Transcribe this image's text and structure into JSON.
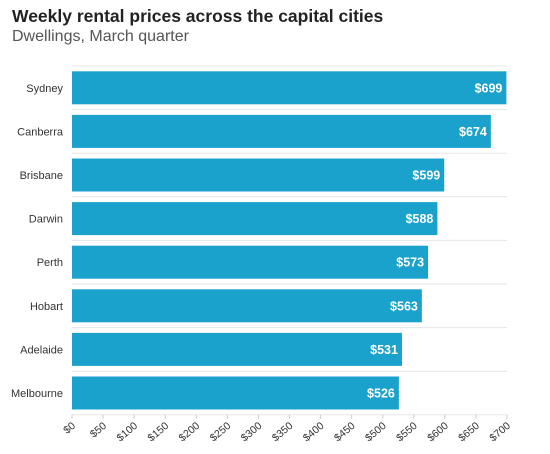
{
  "chart_data": {
    "type": "bar",
    "orientation": "horizontal",
    "title": "Weekly rental prices across the capital cities",
    "subtitle": "Dwellings, March quarter",
    "xlabel": "",
    "ylabel": "",
    "categories": [
      "Sydney",
      "Canberra",
      "Brisbane",
      "Darwin",
      "Perth",
      "Hobart",
      "Adelaide",
      "Melbourne"
    ],
    "values": [
      699,
      674,
      599,
      588,
      573,
      563,
      531,
      526
    ],
    "value_labels": [
      "$699",
      "$674",
      "$599",
      "$588",
      "$573",
      "$563",
      "$531",
      "$526"
    ],
    "xlim": [
      0,
      700
    ],
    "x_ticks": [
      0,
      50,
      100,
      150,
      200,
      250,
      300,
      350,
      400,
      450,
      500,
      550,
      600,
      650,
      700
    ],
    "x_tick_labels": [
      "$0",
      "$50",
      "$100",
      "$150",
      "$200",
      "$250",
      "$300",
      "$350",
      "$400",
      "$450",
      "$500",
      "$550",
      "$600",
      "$650",
      "$700"
    ],
    "grid": true,
    "bar_color": "#1ba2cc"
  }
}
